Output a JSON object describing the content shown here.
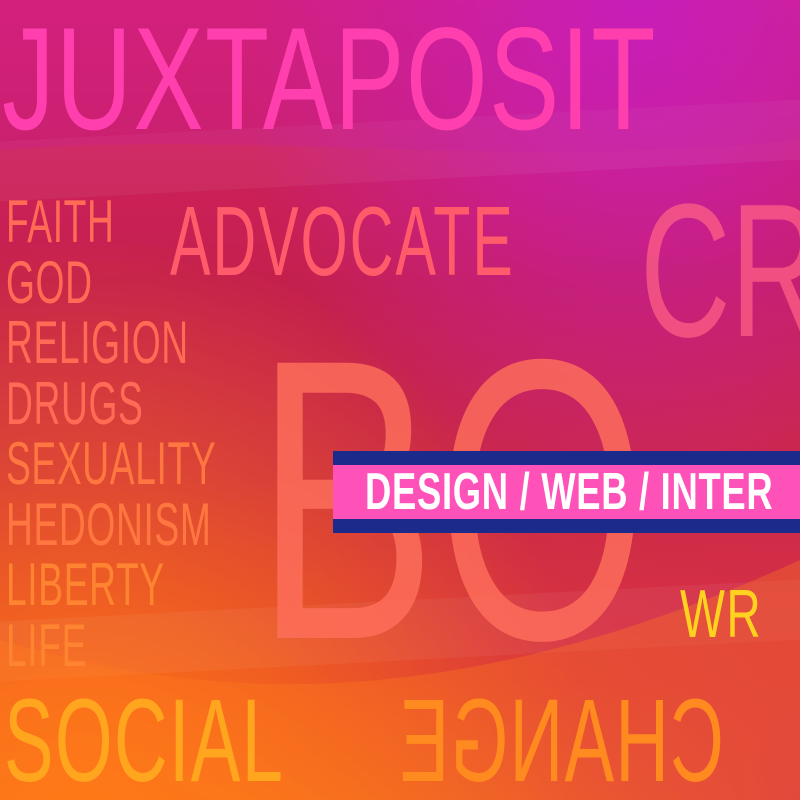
{
  "words": {
    "juxtaposit": "JUXTAPOSIT",
    "advocate": "ADVOCATE",
    "cr": "CR",
    "bo": "BO",
    "wr": "WR",
    "social": "SOCIAL",
    "change": "CHANGE"
  },
  "topics": [
    "FAITH",
    "GOD",
    "RELIGION",
    "DRUGS",
    "SEXUALITY",
    "HEDONISM",
    "LIBERTY",
    "LIFE"
  ],
  "banner": {
    "text": "DESIGN / WEB / INTER"
  },
  "colors": {
    "banner_blue": "#1c2a8c",
    "banner_pink": "#ff52b8",
    "accent_yellow": "#ffd21f"
  }
}
